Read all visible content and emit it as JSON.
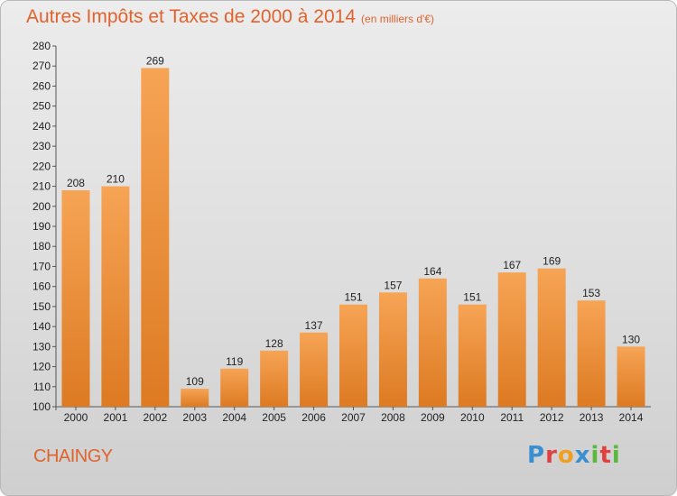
{
  "header": {
    "title": "Autres Impôts et Taxes de 2000 à 2014",
    "subtitle": "(en milliers d'€)"
  },
  "footer": {
    "commune": "CHAINGY",
    "brand_letters": [
      "P",
      "r",
      "o",
      "x",
      "i",
      "t",
      "i"
    ]
  },
  "colors": {
    "title": "#e0632d",
    "bar_top": "#f6a455",
    "bar_bottom": "#dd7a22",
    "brand": [
      "#3a8fd1",
      "#e04040",
      "#f0a020",
      "#3a8fd1",
      "#5cb83c",
      "#e04040",
      "#5cb83c"
    ]
  },
  "chart_data": {
    "type": "bar",
    "categories": [
      "2000",
      "2001",
      "2002",
      "2003",
      "2004",
      "2005",
      "2006",
      "2007",
      "2008",
      "2009",
      "2010",
      "2011",
      "2012",
      "2013",
      "2014"
    ],
    "values": [
      208,
      210,
      269,
      109,
      119,
      128,
      137,
      151,
      157,
      164,
      151,
      167,
      169,
      153,
      130
    ],
    "title": "Autres Impôts et Taxes de 2000 à 2014",
    "subtitle": "(en milliers d'€)",
    "ylim": [
      100,
      280
    ],
    "ytick_step": 10,
    "grid": false,
    "data_labels": true
  }
}
